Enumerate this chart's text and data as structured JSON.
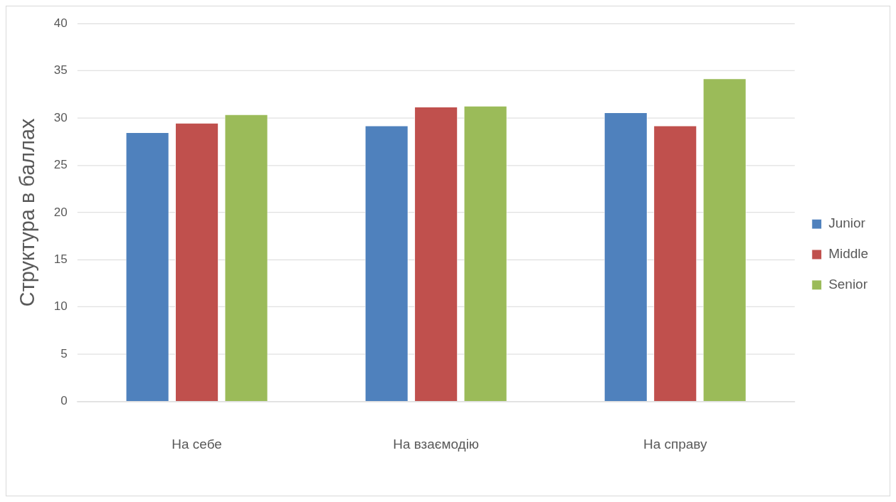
{
  "chart_data": {
    "type": "bar",
    "ylabel": "Структура в баллах",
    "categories": [
      "На себе",
      "На взаємодію",
      "На справу"
    ],
    "series": [
      {
        "name": "Junior",
        "color": "#4f81bd",
        "values": [
          28.5,
          29.2,
          30.6
        ]
      },
      {
        "name": "Middle",
        "color": "#c0504d",
        "values": [
          29.5,
          31.2,
          29.2
        ]
      },
      {
        "name": "Senior",
        "color": "#9bbb59",
        "values": [
          30.4,
          31.3,
          34.2
        ]
      }
    ],
    "ylim": [
      0,
      40
    ],
    "yticks": [
      0,
      5,
      10,
      15,
      20,
      25,
      30,
      35,
      40
    ],
    "grid": "y",
    "legend": "right"
  }
}
